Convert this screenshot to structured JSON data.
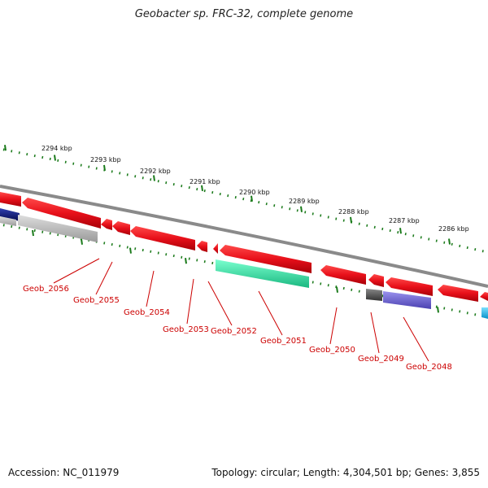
{
  "title": "Geobacter sp. FRC-32, complete genome",
  "footer": {
    "accession": "Accession: NC_011979",
    "summary": "Topology: circular; Length: 4,304,501 bp; Genes: 3,855"
  },
  "ruler_labels": [
    "2294 kbp",
    "2293 kbp",
    "2292 kbp",
    "2291 kbp",
    "2290 kbp",
    "2289 kbp",
    "2288 kbp",
    "2287 kbp",
    "2286 kbp"
  ],
  "gene_labels": [
    "Geob_2056",
    "Geob_2055",
    "Geob_2054",
    "Geob_2053",
    "Geob_2052",
    "Geob_2051",
    "Geob_2050",
    "Geob_2049",
    "Geob_2048"
  ],
  "colors": {
    "forward_gene": "#e8101a",
    "backbone": "#8a8a8a",
    "ruler": "#1a7a1a",
    "label": "#cc0000",
    "cog_gray": "#b5b5b5",
    "cog_navy": "#101a80",
    "cog_green": "#2ee0a0",
    "cog_dark": "#555555",
    "cog_purple": "#6a60d0",
    "cog_cyan": "#18b8e8"
  }
}
